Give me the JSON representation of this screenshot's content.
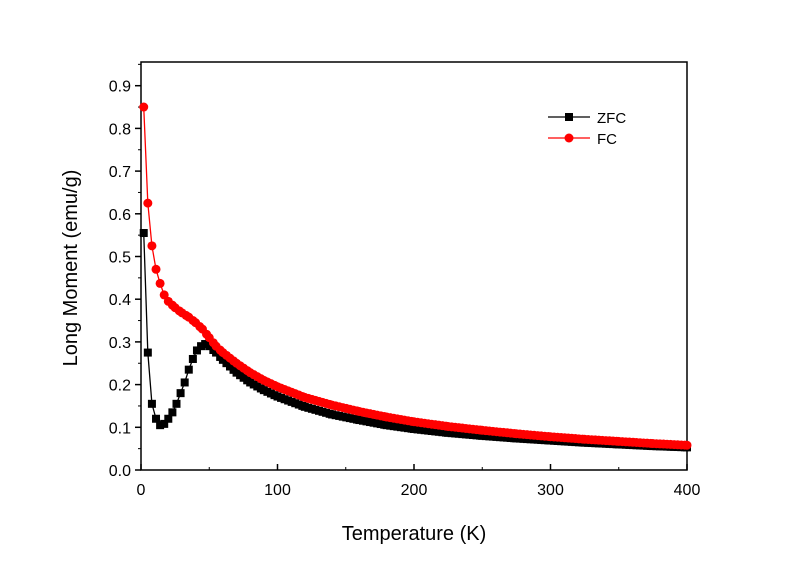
{
  "chart_data": {
    "type": "line",
    "title": "",
    "xlabel": "Temperature (K)",
    "ylabel": "Long Moment (emu/g)",
    "xlim": [
      0,
      400
    ],
    "ylim": [
      0.0,
      0.95
    ],
    "xticks": [
      "0",
      "100",
      "200",
      "300",
      "400"
    ],
    "yticks": [
      "0.0",
      "0.1",
      "0.2",
      "0.3",
      "0.4",
      "0.5",
      "0.6",
      "0.7",
      "0.8",
      "0.9"
    ],
    "grid": false,
    "legend_position": "top-right",
    "series": [
      {
        "name": "ZFC",
        "color": "#000000",
        "marker": "square",
        "x": [
          2,
          5,
          8,
          11,
          14,
          17,
          20,
          23,
          26,
          29,
          32,
          35,
          38,
          41,
          44,
          47,
          50,
          55,
          60,
          70,
          80,
          90,
          100,
          120,
          140,
          160,
          180,
          200,
          225,
          250,
          275,
          300,
          325,
          350,
          375,
          400
        ],
        "y": [
          0.555,
          0.275,
          0.155,
          0.12,
          0.105,
          0.108,
          0.12,
          0.135,
          0.155,
          0.18,
          0.205,
          0.235,
          0.26,
          0.28,
          0.29,
          0.295,
          0.29,
          0.275,
          0.258,
          0.228,
          0.205,
          0.187,
          0.172,
          0.148,
          0.13,
          0.117,
          0.105,
          0.096,
          0.087,
          0.08,
          0.074,
          0.069,
          0.064,
          0.06,
          0.056,
          0.053
        ]
      },
      {
        "name": "FC",
        "color": "#ff0000",
        "marker": "circle",
        "x": [
          2,
          5,
          8,
          11,
          14,
          17,
          20,
          25,
          30,
          35,
          40,
          45,
          50,
          55,
          60,
          70,
          80,
          90,
          100,
          120,
          140,
          160,
          180,
          200,
          225,
          250,
          275,
          300,
          325,
          350,
          375,
          400
        ],
        "y": [
          0.85,
          0.625,
          0.525,
          0.47,
          0.437,
          0.41,
          0.395,
          0.38,
          0.368,
          0.358,
          0.345,
          0.33,
          0.31,
          0.29,
          0.275,
          0.25,
          0.228,
          0.21,
          0.195,
          0.17,
          0.152,
          0.137,
          0.124,
          0.113,
          0.102,
          0.093,
          0.085,
          0.078,
          0.072,
          0.067,
          0.062,
          0.058
        ]
      }
    ]
  }
}
